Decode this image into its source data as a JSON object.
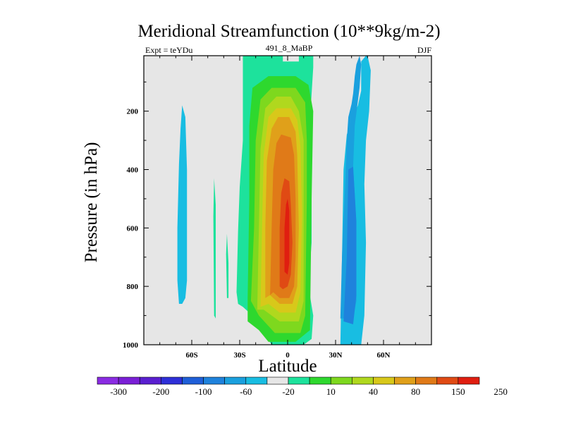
{
  "chart_data": {
    "type": "contour",
    "title": "Meridional Streamfunction (10**9kg/m-2)",
    "subtitle_left": "Expt = teYDu",
    "subtitle_center": "491_8_MaBP",
    "subtitle_right": "DJF",
    "xlabel": "Latitude",
    "ylabel": "Pressure (in hPa)",
    "xlim": [
      -90,
      90
    ],
    "ylim": [
      1000,
      10
    ],
    "x_ticks": [
      {
        "value": -60,
        "label": "60S"
      },
      {
        "value": -30,
        "label": "30S"
      },
      {
        "value": 0,
        "label": "0"
      },
      {
        "value": 30,
        "label": "30N"
      },
      {
        "value": 60,
        "label": "60N"
      }
    ],
    "y_ticks": [
      {
        "value": 200,
        "label": "200"
      },
      {
        "value": 400,
        "label": "400"
      },
      {
        "value": 600,
        "label": "600"
      },
      {
        "value": 800,
        "label": "800"
      },
      {
        "value": 1000,
        "label": "1000"
      }
    ],
    "background_color": "#e6e6e6",
    "colorbar": {
      "colors": [
        "#8a2be2",
        "#7a1fd6",
        "#5a1fd0",
        "#2e2fd8",
        "#1f5fd8",
        "#1f82dc",
        "#1aa0de",
        "#18bde2",
        "#e6e6e6",
        "#1de29c",
        "#2ed82e",
        "#7ed81e",
        "#b0d81e",
        "#d8c81a",
        "#e0a01a",
        "#e07a18",
        "#e04a14",
        "#e01e10"
      ],
      "labels": [
        {
          "boundary": 1,
          "text": "-300"
        },
        {
          "boundary": 3,
          "text": "-200"
        },
        {
          "boundary": 5,
          "text": "-100"
        },
        {
          "boundary": 7,
          "text": "-60"
        },
        {
          "boundary": 9,
          "text": "-20"
        },
        {
          "boundary": 11,
          "text": "10"
        },
        {
          "boundary": 13,
          "text": "40"
        },
        {
          "boundary": 15,
          "text": "80"
        },
        {
          "boundary": 17,
          "text": "150"
        },
        {
          "boundary": 19,
          "text": "250"
        }
      ]
    },
    "contours": [
      {
        "color": "#18bde2",
        "points": [
          [
            -69,
            780
          ],
          [
            -69,
            600
          ],
          [
            -68,
            380
          ],
          [
            -67,
            260
          ],
          [
            -66,
            180
          ],
          [
            -64,
            220
          ],
          [
            -63,
            400
          ],
          [
            -63,
            620
          ],
          [
            -63,
            780
          ],
          [
            -64,
            840
          ],
          [
            -66,
            860
          ],
          [
            -68,
            860
          ]
        ]
      },
      {
        "color": "#18bde2",
        "points": [
          [
            33,
            1000
          ],
          [
            34,
            700
          ],
          [
            35,
            400
          ],
          [
            37,
            280
          ],
          [
            41,
            220
          ],
          [
            44,
            180
          ],
          [
            46,
            130
          ],
          [
            46,
            30
          ],
          [
            49,
            10
          ],
          [
            50,
            10
          ],
          [
            52,
            60
          ],
          [
            51,
            200
          ],
          [
            49,
            300
          ],
          [
            48,
            450
          ],
          [
            49,
            650
          ],
          [
            48,
            900
          ],
          [
            46,
            1000
          ]
        ]
      },
      {
        "color": "#1aa0de",
        "points": [
          [
            33,
            910
          ],
          [
            34,
            700
          ],
          [
            36,
            450
          ],
          [
            37,
            300
          ],
          [
            38,
            220
          ],
          [
            40,
            175
          ],
          [
            41,
            140
          ],
          [
            42,
            80
          ],
          [
            43,
            40
          ],
          [
            45,
            10
          ],
          [
            46,
            40
          ],
          [
            45,
            120
          ],
          [
            42,
            250
          ],
          [
            41,
            390
          ],
          [
            43,
            580
          ],
          [
            43,
            850
          ],
          [
            41,
            910
          ]
        ]
      },
      {
        "color": "#1f82dc",
        "points": [
          [
            35,
            920
          ],
          [
            37,
            700
          ],
          [
            38,
            400
          ],
          [
            41,
            390
          ],
          [
            43,
            580
          ],
          [
            43,
            830
          ],
          [
            41,
            930
          ]
        ]
      },
      {
        "color": "#1de29c",
        "points": [
          [
            -46,
            900
          ],
          [
            -46.5,
            560
          ],
          [
            -46,
            430
          ],
          [
            -45,
            520
          ],
          [
            -45,
            720
          ],
          [
            -45,
            910
          ]
        ]
      },
      {
        "color": "#1de29c",
        "points": [
          [
            -38,
            840
          ],
          [
            -38.5,
            690
          ],
          [
            -38,
            620
          ],
          [
            -37,
            720
          ],
          [
            -37,
            840
          ]
        ]
      },
      {
        "color": "#1de29c",
        "points": [
          [
            -32,
            820
          ],
          [
            -31,
            610
          ],
          [
            -30,
            460
          ],
          [
            -28,
            300
          ],
          [
            -28,
            10
          ],
          [
            -3,
            10
          ],
          [
            -3,
            30
          ],
          [
            7,
            30
          ],
          [
            7,
            10
          ],
          [
            16,
            10
          ],
          [
            16,
            50
          ],
          [
            14,
            230
          ],
          [
            15,
            450
          ],
          [
            15,
            650
          ],
          [
            13,
            800
          ],
          [
            16,
            900
          ],
          [
            15,
            980
          ],
          [
            10,
            1000
          ],
          [
            -10,
            1000
          ],
          [
            -15,
            960
          ],
          [
            -22,
            900
          ],
          [
            -28,
            870
          ],
          [
            -31,
            860
          ]
        ]
      },
      {
        "color": "#2ed82e",
        "points": [
          [
            -25,
            840
          ],
          [
            -24,
            500
          ],
          [
            -24,
            250
          ],
          [
            -22,
            120
          ],
          [
            -12,
            80
          ],
          [
            5,
            80
          ],
          [
            13,
            110
          ],
          [
            16,
            200
          ],
          [
            15,
            500
          ],
          [
            14,
            950
          ],
          [
            5,
            990
          ],
          [
            -12,
            990
          ],
          [
            -18,
            950
          ],
          [
            -25,
            920
          ]
        ]
      },
      {
        "color": "#7ed81e",
        "points": [
          [
            -23,
            850
          ],
          [
            -21,
            600
          ],
          [
            -20,
            300
          ],
          [
            -17,
            160
          ],
          [
            -10,
            120
          ],
          [
            5,
            120
          ],
          [
            11,
            170
          ],
          [
            12,
            300
          ],
          [
            12,
            500
          ],
          [
            11,
            900
          ],
          [
            8,
            960
          ],
          [
            -8,
            960
          ],
          [
            -18,
            900
          ]
        ]
      },
      {
        "color": "#b0d81e",
        "points": [
          [
            -19,
            880
          ],
          [
            -18,
            600
          ],
          [
            -17,
            330
          ],
          [
            -14,
            190
          ],
          [
            -7,
            150
          ],
          [
            2,
            150
          ],
          [
            7,
            200
          ],
          [
            10,
            300
          ],
          [
            10,
            500
          ],
          [
            10,
            850
          ],
          [
            7,
            920
          ],
          [
            -5,
            920
          ],
          [
            -15,
            880
          ]
        ]
      },
      {
        "color": "#d8c81a",
        "points": [
          [
            -17,
            870
          ],
          [
            -16,
            600
          ],
          [
            -15,
            350
          ],
          [
            -12,
            220
          ],
          [
            -7,
            190
          ],
          [
            2,
            190
          ],
          [
            6,
            230
          ],
          [
            8,
            320
          ],
          [
            9,
            550
          ],
          [
            8,
            820
          ],
          [
            5,
            890
          ],
          [
            -5,
            890
          ],
          [
            -12,
            860
          ]
        ]
      },
      {
        "color": "#e0a01a",
        "points": [
          [
            -14,
            840
          ],
          [
            -14,
            600
          ],
          [
            -13,
            370
          ],
          [
            -10,
            260
          ],
          [
            -6,
            220
          ],
          [
            1,
            220
          ],
          [
            5,
            270
          ],
          [
            6,
            350
          ],
          [
            7,
            600
          ],
          [
            6,
            800
          ],
          [
            3,
            860
          ],
          [
            -5,
            860
          ],
          [
            -11,
            830
          ]
        ]
      },
      {
        "color": "#e07a18",
        "points": [
          [
            -11,
            830
          ],
          [
            -10,
            600
          ],
          [
            -9,
            400
          ],
          [
            -7,
            310
          ],
          [
            -4,
            280
          ],
          [
            2,
            290
          ],
          [
            4,
            350
          ],
          [
            5,
            500
          ],
          [
            5,
            700
          ],
          [
            4,
            800
          ],
          [
            1,
            840
          ],
          [
            -5,
            840
          ],
          [
            -9,
            820
          ]
        ]
      },
      {
        "color": "#e04a14",
        "points": [
          [
            -5,
            800
          ],
          [
            -5,
            600
          ],
          [
            -4,
            480
          ],
          [
            -2,
            430
          ],
          [
            1,
            440
          ],
          [
            2,
            520
          ],
          [
            3,
            650
          ],
          [
            2,
            760
          ],
          [
            0,
            800
          ],
          [
            -3,
            810
          ]
        ]
      },
      {
        "color": "#e01e10",
        "points": [
          [
            -2,
            750
          ],
          [
            -2,
            600
          ],
          [
            -1,
            520
          ],
          [
            0,
            500
          ],
          [
            1,
            540
          ],
          [
            1,
            650
          ],
          [
            1,
            720
          ],
          [
            0,
            760
          ]
        ]
      }
    ]
  }
}
